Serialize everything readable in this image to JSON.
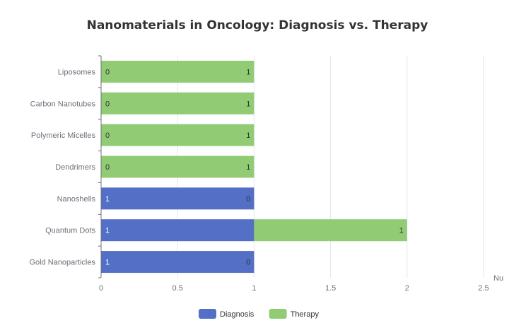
{
  "chart_data": {
    "type": "bar",
    "orientation": "horizontal",
    "stacked": true,
    "title": "Nanomaterials in Oncology: Diagnosis vs. Therapy",
    "xlabel": "Nu",
    "ylabel": "",
    "xlim": [
      0,
      2.5
    ],
    "xticks": [
      0,
      0.5,
      1,
      1.5,
      2,
      2.5
    ],
    "categories": [
      "Gold Nanoparticles",
      "Quantum Dots",
      "Nanoshells",
      "Dendrimers",
      "Polymeric Micelles",
      "Carbon Nanotubes",
      "Liposomes"
    ],
    "series": [
      {
        "name": "Diagnosis",
        "color": "#5470c6",
        "values": [
          1,
          1,
          1,
          0,
          0,
          0,
          0
        ]
      },
      {
        "name": "Therapy",
        "color": "#91cc75",
        "values": [
          0,
          1,
          0,
          1,
          1,
          1,
          1
        ]
      }
    ],
    "legend_position": "bottom-center",
    "grid": true
  }
}
